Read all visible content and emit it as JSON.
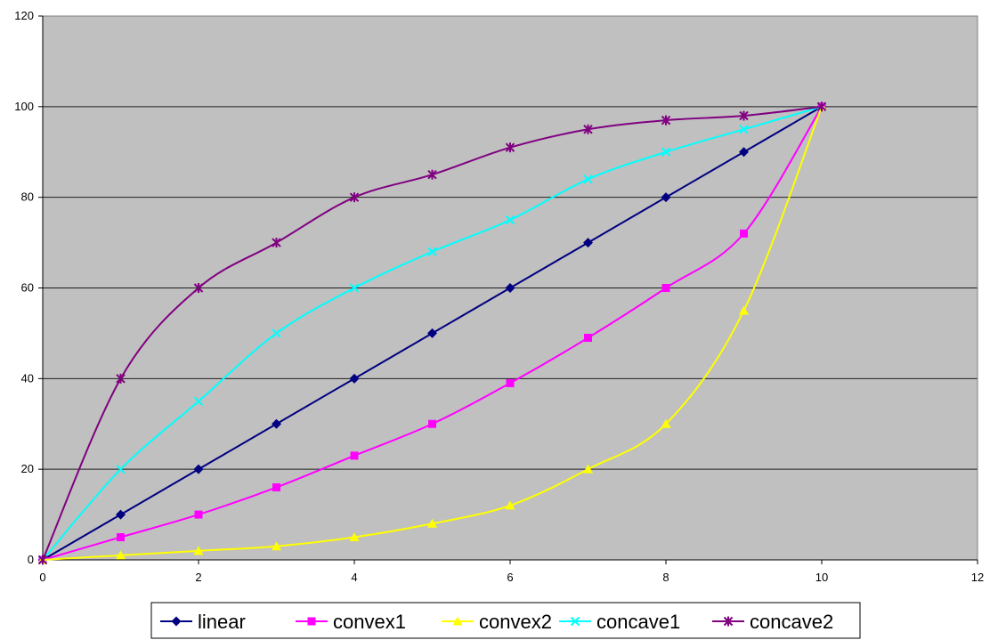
{
  "chart_data": {
    "type": "scatter",
    "subtype": "smoothed lines with markers",
    "title": "",
    "xlabel": "",
    "ylabel": "",
    "xlim": [
      0,
      12
    ],
    "ylim": [
      0,
      120
    ],
    "xticks": [
      0,
      2,
      4,
      6,
      8,
      10,
      12
    ],
    "yticks": [
      0,
      20,
      40,
      60,
      80,
      100,
      120
    ],
    "grid": "horizontal major gridlines",
    "plot_background": "#c0c0c0",
    "legend_position": "bottom",
    "x": [
      0,
      1,
      2,
      3,
      4,
      5,
      6,
      7,
      8,
      9,
      10
    ],
    "series": [
      {
        "name": "linear",
        "color": "#000080",
        "marker": "diamond",
        "smooth": false,
        "values": [
          0,
          10,
          20,
          30,
          40,
          50,
          60,
          70,
          80,
          90,
          100
        ]
      },
      {
        "name": "convex1",
        "color": "#ff00ff",
        "marker": "square",
        "smooth": true,
        "values": [
          0,
          5,
          10,
          16,
          23,
          30,
          39,
          49,
          60,
          72,
          100
        ]
      },
      {
        "name": "convex2",
        "color": "#ffff00",
        "marker": "triangle",
        "smooth": true,
        "values": [
          0,
          1,
          2,
          3,
          5,
          8,
          12,
          20,
          30,
          55,
          100
        ]
      },
      {
        "name": "concave1",
        "color": "#00ffff",
        "marker": "x",
        "smooth": true,
        "values": [
          0,
          20,
          35,
          50,
          60,
          68,
          75,
          84,
          90,
          95,
          100
        ]
      },
      {
        "name": "concave2",
        "color": "#800080",
        "marker": "star",
        "smooth": true,
        "values": [
          0,
          40,
          60,
          70,
          80,
          85,
          91,
          95,
          97,
          98,
          100
        ]
      }
    ]
  }
}
